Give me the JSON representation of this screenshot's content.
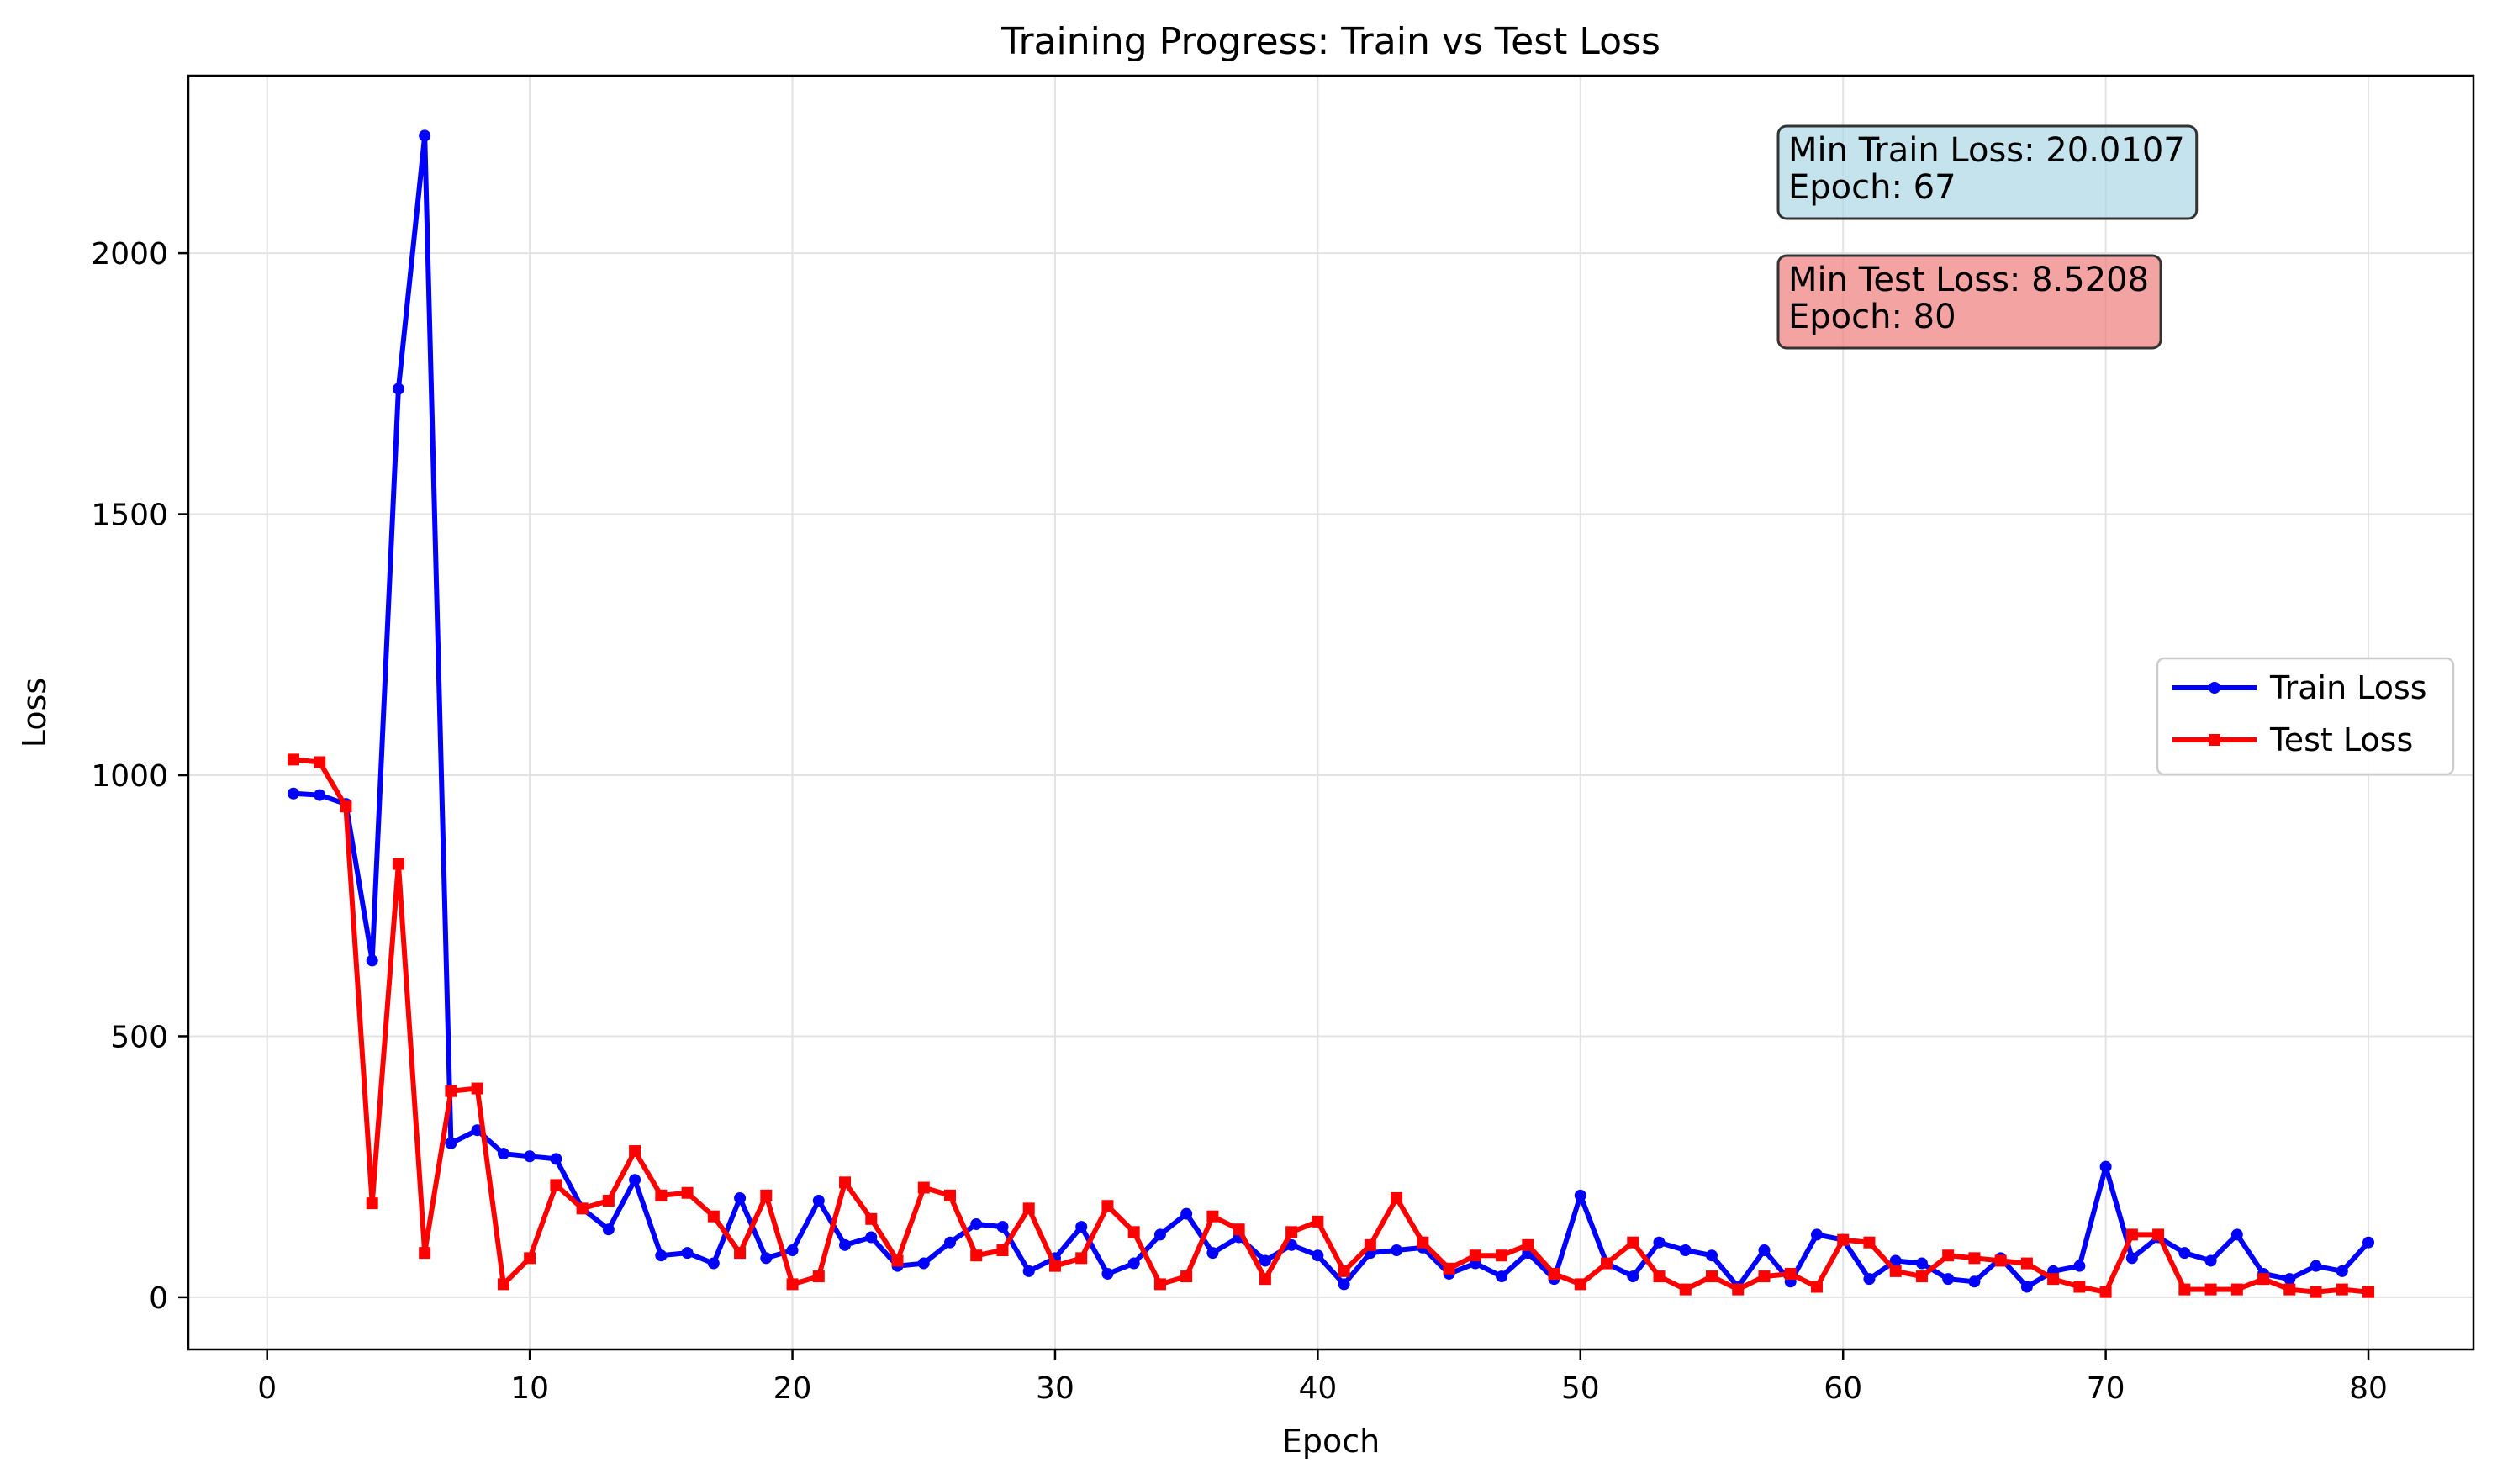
{
  "chart_data": {
    "type": "line",
    "title": "Training Progress: Train vs Test Loss",
    "xlabel": "Epoch",
    "ylabel": "Loss",
    "xlim": [
      -3,
      84
    ],
    "ylim": [
      -100,
      2340
    ],
    "xticks": [
      0,
      10,
      20,
      30,
      40,
      50,
      60,
      70,
      80
    ],
    "yticks": [
      0,
      500,
      1000,
      1500,
      2000
    ],
    "grid": true,
    "legend_position": "center-right",
    "series": [
      {
        "name": "Train Loss",
        "color": "#0000ff",
        "marker": "circle",
        "x": [
          1,
          2,
          3,
          4,
          5,
          6,
          7,
          8,
          9,
          10,
          11,
          12,
          13,
          14,
          15,
          16,
          17,
          18,
          19,
          20,
          21,
          22,
          23,
          24,
          25,
          26,
          27,
          28,
          29,
          30,
          31,
          32,
          33,
          34,
          35,
          36,
          37,
          38,
          39,
          40,
          41,
          42,
          43,
          44,
          45,
          46,
          47,
          48,
          49,
          50,
          51,
          52,
          53,
          54,
          55,
          56,
          57,
          58,
          59,
          60,
          61,
          62,
          63,
          64,
          65,
          66,
          67,
          68,
          69,
          70,
          71,
          72,
          73,
          74,
          75,
          76,
          77,
          78,
          79,
          80
        ],
        "values": [
          965,
          962,
          945,
          645,
          1740,
          2225,
          295,
          320,
          275,
          270,
          265,
          170,
          130,
          225,
          80,
          85,
          65,
          190,
          75,
          90,
          185,
          100,
          115,
          60,
          65,
          105,
          140,
          135,
          50,
          75,
          135,
          45,
          65,
          120,
          160,
          85,
          115,
          70,
          100,
          80,
          25,
          85,
          90,
          95,
          45,
          65,
          40,
          85,
          35,
          195,
          65,
          40,
          105,
          90,
          80,
          20,
          90,
          30,
          120,
          110,
          35,
          70,
          65,
          35,
          30,
          75,
          20,
          50,
          60,
          250,
          75,
          115,
          85,
          70,
          120,
          45,
          35,
          60,
          50,
          105
        ]
      },
      {
        "name": "Test Loss",
        "color": "#ff0000",
        "marker": "square",
        "x": [
          1,
          2,
          3,
          4,
          5,
          6,
          7,
          8,
          9,
          10,
          11,
          12,
          13,
          14,
          15,
          16,
          17,
          18,
          19,
          20,
          21,
          22,
          23,
          24,
          25,
          26,
          27,
          28,
          29,
          30,
          31,
          32,
          33,
          34,
          35,
          36,
          37,
          38,
          39,
          40,
          41,
          42,
          43,
          44,
          45,
          46,
          47,
          48,
          49,
          50,
          51,
          52,
          53,
          54,
          55,
          56,
          57,
          58,
          59,
          60,
          61,
          62,
          63,
          64,
          65,
          66,
          67,
          68,
          69,
          70,
          71,
          72,
          73,
          74,
          75,
          76,
          77,
          78,
          79,
          80
        ],
        "values": [
          1030,
          1025,
          940,
          180,
          830,
          85,
          395,
          400,
          25,
          75,
          215,
          170,
          185,
          280,
          195,
          200,
          155,
          85,
          195,
          25,
          40,
          220,
          150,
          70,
          210,
          195,
          80,
          90,
          170,
          60,
          75,
          175,
          125,
          25,
          40,
          155,
          130,
          35,
          125,
          145,
          50,
          100,
          190,
          105,
          55,
          80,
          80,
          100,
          45,
          25,
          65,
          105,
          40,
          15,
          40,
          15,
          40,
          45,
          20,
          110,
          105,
          50,
          40,
          80,
          75,
          70,
          65,
          35,
          20,
          10,
          120,
          120,
          15,
          15,
          15,
          35,
          15,
          10,
          15,
          10
        ]
      }
    ],
    "annotations": [
      {
        "lines": [
          "Min Train Loss: 20.0107",
          "Epoch: 67"
        ],
        "color": "#add8e6"
      },
      {
        "lines": [
          "Min Test Loss: 8.5208",
          "Epoch: 80"
        ],
        "color": "#f08080"
      }
    ]
  }
}
